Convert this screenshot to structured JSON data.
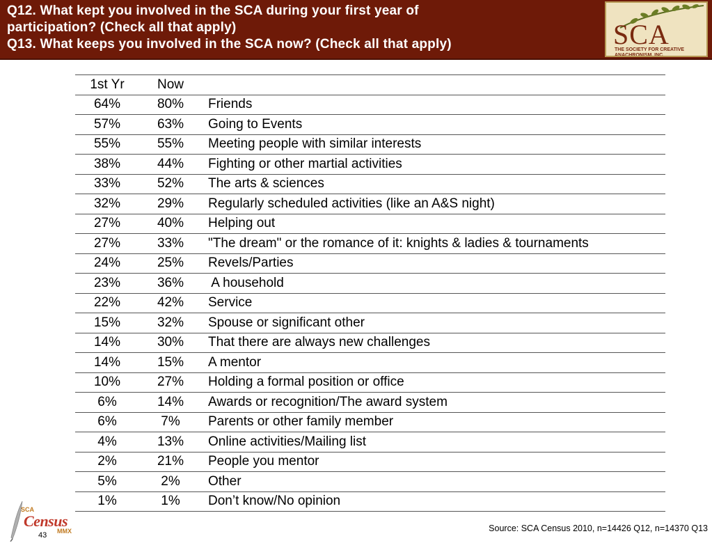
{
  "header": {
    "title_lines": [
      "Q12. What kept you involved in the SCA during your first year of",
      "participation? (Check all that apply)",
      "Q13. What keeps you involved in the SCA now? (Check all that apply)"
    ],
    "logo_text": "SCA",
    "logo_subtext": "THE SOCIETY FOR CREATIVE ANACHRONISM, INC.",
    "color": "#6e1a08"
  },
  "table": {
    "headers": [
      "1st Yr",
      "Now",
      ""
    ],
    "rows": [
      [
        "64%",
        "80%",
        "Friends"
      ],
      [
        "57%",
        "63%",
        "Going to Events"
      ],
      [
        "55%",
        "55%",
        "Meeting people with similar interests"
      ],
      [
        "38%",
        "44%",
        "Fighting or other martial activities"
      ],
      [
        "33%",
        "52%",
        "The arts & sciences"
      ],
      [
        "32%",
        "29%",
        "Regularly scheduled activities (like an A&S night)"
      ],
      [
        "27%",
        "40%",
        "Helping out"
      ],
      [
        "27%",
        "33%",
        "\"The dream\" or the romance of it: knights & ladies & tournaments"
      ],
      [
        "24%",
        "25%",
        "Revels/Parties"
      ],
      [
        "23%",
        "36%",
        " A household"
      ],
      [
        "22%",
        "42%",
        "Service"
      ],
      [
        "15%",
        "32%",
        "Spouse or significant other"
      ],
      [
        "14%",
        "30%",
        "That there are always new challenges"
      ],
      [
        "14%",
        "15%",
        "A mentor"
      ],
      [
        "10%",
        "27%",
        "Holding a formal position or office"
      ],
      [
        "6%",
        "14%",
        "Awards or recognition/The award system"
      ],
      [
        "6%",
        "7%",
        "Parents or other family member"
      ],
      [
        "4%",
        "13%",
        "Online activities/Mailing list"
      ],
      [
        "2%",
        "21%",
        "People you mentor"
      ],
      [
        "5%",
        "2%",
        "Other"
      ],
      [
        "1%",
        "1%",
        "Don’t know/No opinion"
      ]
    ]
  },
  "footer": {
    "page_number": "43",
    "logo_top": "SCA",
    "logo_main": "Census",
    "logo_year": "MMX",
    "source": "Source: SCA Census 2010, n=14426 Q12, n=14370 Q13"
  }
}
